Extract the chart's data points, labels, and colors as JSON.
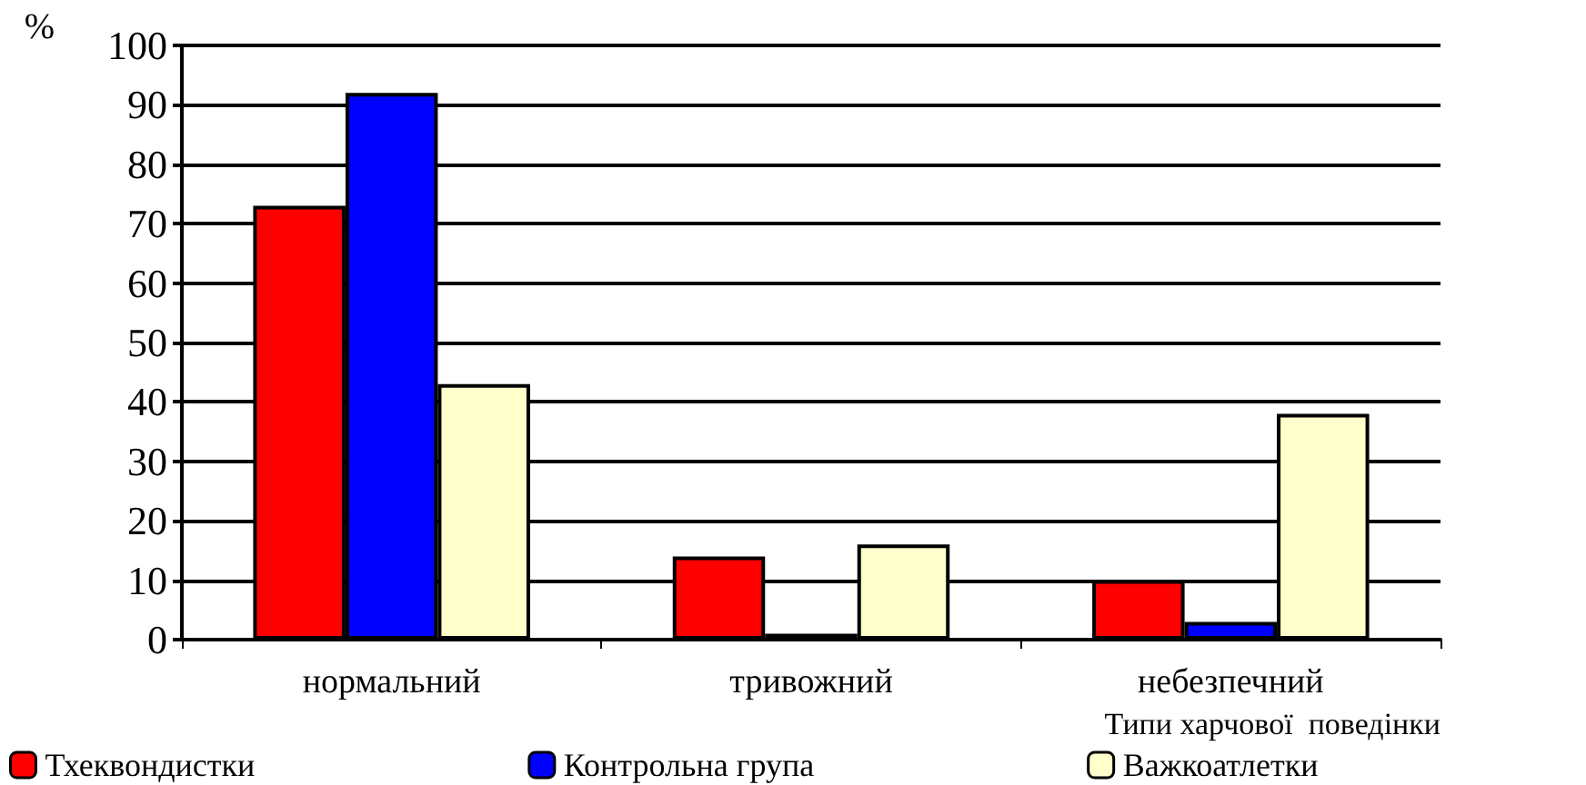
{
  "chart_data": {
    "type": "bar",
    "ylabel": "%",
    "xlabel": "Типи харчової  поведінки",
    "categories": [
      "нормальний",
      "тривожний",
      "небезпечний"
    ],
    "series": [
      {
        "name": "Тхеквондистки",
        "color": "#ff0000",
        "values": [
          73,
          14,
          10
        ]
      },
      {
        "name": "Контрольна група",
        "color": "#0000ff",
        "values": [
          92,
          1,
          3
        ]
      },
      {
        "name": "Важкоатлетки",
        "color": "#ffffcc",
        "values": [
          43,
          16,
          38
        ]
      }
    ],
    "ylim": [
      0,
      100
    ],
    "yticks": [
      0,
      10,
      20,
      30,
      40,
      50,
      60,
      70,
      80,
      90,
      100
    ],
    "grid": "y",
    "legend": "bottom"
  }
}
